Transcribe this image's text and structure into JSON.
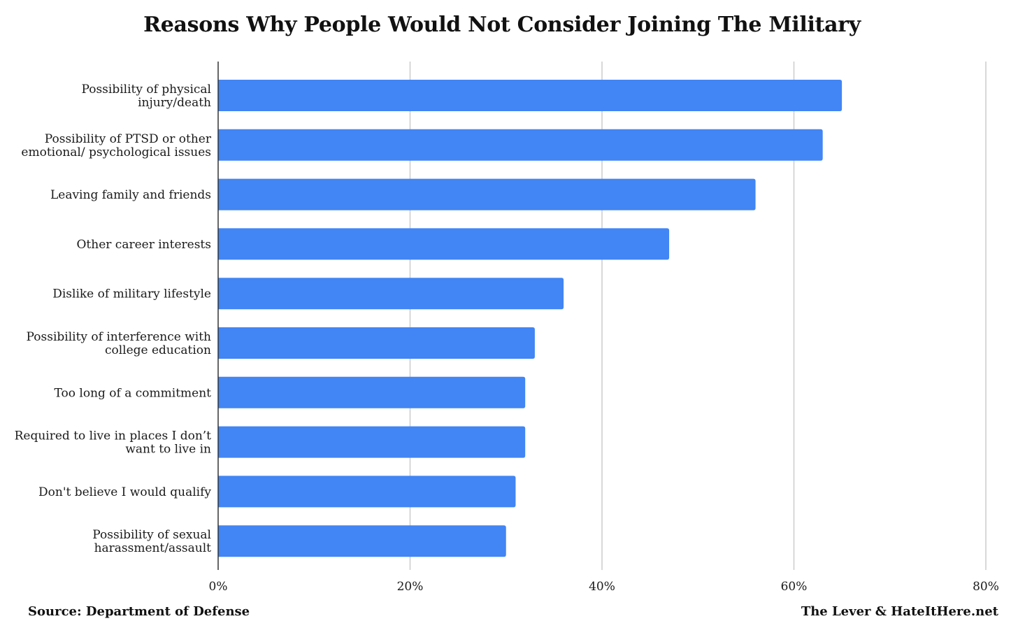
{
  "chart_data": {
    "type": "bar",
    "orientation": "horizontal",
    "title": "Reasons Why People Would Not Consider Joining The Military",
    "categories": [
      [
        "Possibility of physical",
        "injury/death"
      ],
      [
        "Possibility of PTSD or other",
        "emotional/ psychological issues"
      ],
      [
        "Leaving family and friends"
      ],
      [
        "Other career interests"
      ],
      [
        "Dislike of military lifestyle"
      ],
      [
        "Possibility of interference with",
        "college education"
      ],
      [
        "Too long of a commitment"
      ],
      [
        "Required to live in places I don’t",
        "want to live in"
      ],
      [
        "Don't believe I would qualify"
      ],
      [
        "Possibility of sexual",
        "harassment/assault"
      ]
    ],
    "values": [
      65,
      63,
      56,
      47,
      36,
      33,
      32,
      32,
      31,
      30
    ],
    "xlim": [
      0,
      80
    ],
    "xticks": [
      {
        "value": 0,
        "label": "0%"
      },
      {
        "value": 20,
        "label": "20%"
      },
      {
        "value": 40,
        "label": "40%"
      },
      {
        "value": 60,
        "label": "60%"
      },
      {
        "value": 80,
        "label": "80%"
      }
    ],
    "grid": true,
    "bar_color": "#4285f4",
    "grid_color": "#cccccc",
    "axis_color": "#333333"
  },
  "footer": {
    "source": "Source: Department of Defense",
    "credit": "The Lever & HateItHere.net"
  }
}
